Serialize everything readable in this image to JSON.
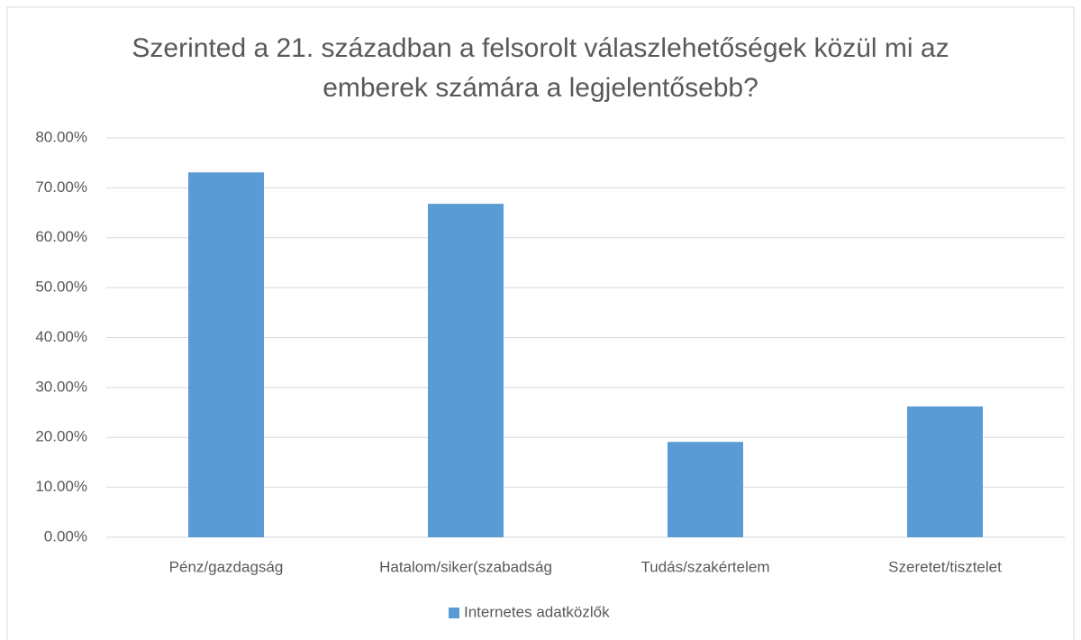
{
  "chart_data": {
    "type": "bar",
    "title": "Szerinted a 21. században a felsorolt válaszlehetőségek közül mi az emberek számára a legjelentősebb?",
    "categories": [
      "Pénz/gazdagság",
      "Hatalom/siker(szabadság",
      "Tudás/szakértelem",
      "Szeretet/tisztelet"
    ],
    "series": [
      {
        "name": "Internetes adatközlők",
        "color": "#5b9bd5",
        "values": [
          73.1,
          66.8,
          19.1,
          26.2
        ]
      }
    ],
    "ylim": [
      0,
      80
    ],
    "yticks": [
      {
        "value": 0,
        "label": "0.00%"
      },
      {
        "value": 10,
        "label": "10.00%"
      },
      {
        "value": 20,
        "label": "20.00%"
      },
      {
        "value": 30,
        "label": "30.00%"
      },
      {
        "value": 40,
        "label": "40.00%"
      },
      {
        "value": 50,
        "label": "50.00%"
      },
      {
        "value": 60,
        "label": "60.00%"
      },
      {
        "value": 70,
        "label": "70.00%"
      },
      {
        "value": 80,
        "label": "80.00%"
      }
    ],
    "grid": true,
    "legend": "bottom"
  }
}
